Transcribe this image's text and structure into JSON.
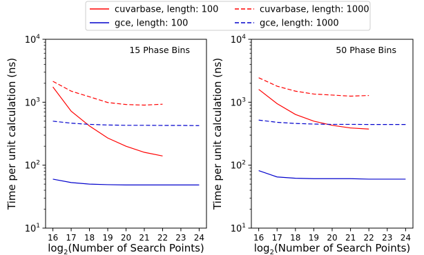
{
  "chart_data": {
    "type": "line",
    "legend": {
      "placement": "top-center",
      "entries": [
        {
          "label": "cuvarbase, length: 100",
          "color": "#ff0000",
          "dash": "solid"
        },
        {
          "label": "cuvarbase, length: 1000",
          "color": "#ff0000",
          "dash": "dashed"
        },
        {
          "label": "gce, length: 100",
          "color": "#0000cc",
          "dash": "solid"
        },
        {
          "label": "gce, length: 1000",
          "color": "#0000cc",
          "dash": "dashed"
        }
      ]
    },
    "ylabel": "Time per unit calculation (ns)",
    "xlabel_prefix": "log",
    "xlabel_sub": "2",
    "xlabel_rest": "(Number of Search Points)",
    "x_ticks": [
      16,
      17,
      18,
      19,
      20,
      21,
      22,
      23,
      24
    ],
    "y_ticks": [
      {
        "value": 10,
        "base": "10",
        "exp": "1"
      },
      {
        "value": 100,
        "base": "10",
        "exp": "2"
      },
      {
        "value": 1000,
        "base": "10",
        "exp": "3"
      },
      {
        "value": 10000,
        "base": "10",
        "exp": "4"
      }
    ],
    "xlim": [
      15.6,
      24.4
    ],
    "ylim": [
      10,
      10000
    ],
    "yscale": "log",
    "panels": [
      {
        "annotation": "15 Phase Bins",
        "series": [
          {
            "name": "cuvarbase, length: 100",
            "color": "#ff0000",
            "dash": "solid",
            "x": [
              16,
              17,
              18,
              19,
              20,
              21,
              22
            ],
            "y": [
              1750,
              720,
              420,
              270,
              200,
              160,
              140
            ]
          },
          {
            "name": "cuvarbase, length: 1000",
            "color": "#ff0000",
            "dash": "dashed",
            "x": [
              16,
              17,
              18,
              19,
              20,
              21,
              22
            ],
            "y": [
              2150,
              1500,
              1220,
              990,
              920,
              900,
              930
            ]
          },
          {
            "name": "gce, length: 100",
            "color": "#0000cc",
            "dash": "solid",
            "x": [
              16,
              17,
              18,
              19,
              20,
              21,
              22,
              23,
              24
            ],
            "y": [
              60,
              53,
              50,
              49,
              48.5,
              48.5,
              48.5,
              48.5,
              48.5
            ]
          },
          {
            "name": "gce, length: 1000",
            "color": "#0000cc",
            "dash": "dashed",
            "x": [
              16,
              17,
              18,
              19,
              20,
              21,
              22,
              23,
              24
            ],
            "y": [
              500,
              465,
              445,
              435,
              430,
              430,
              428,
              428,
              425
            ]
          }
        ]
      },
      {
        "annotation": "50 Phase Bins",
        "series": [
          {
            "name": "cuvarbase, length: 100",
            "color": "#ff0000",
            "dash": "solid",
            "x": [
              16,
              17,
              18,
              19,
              20,
              21,
              22
            ],
            "y": [
              1600,
              950,
              640,
              500,
              430,
              390,
              375
            ]
          },
          {
            "name": "cuvarbase, length: 1000",
            "color": "#ff0000",
            "dash": "dashed",
            "x": [
              16,
              17,
              18,
              19,
              20,
              21,
              22
            ],
            "y": [
              2450,
              1800,
              1500,
              1350,
              1300,
              1250,
              1280
            ]
          },
          {
            "name": "gce, length: 100",
            "color": "#0000cc",
            "dash": "solid",
            "x": [
              16,
              17,
              18,
              19,
              20,
              21,
              22,
              23,
              24
            ],
            "y": [
              82,
              65,
              62,
              61,
              61,
              61,
              60,
              60,
              60
            ]
          },
          {
            "name": "gce, length: 1000",
            "color": "#0000cc",
            "dash": "dashed",
            "x": [
              16,
              17,
              18,
              19,
              20,
              21,
              22,
              23,
              24
            ],
            "y": [
              520,
              480,
              460,
              450,
              445,
              445,
              443,
              443,
              443
            ]
          }
        ]
      }
    ]
  }
}
